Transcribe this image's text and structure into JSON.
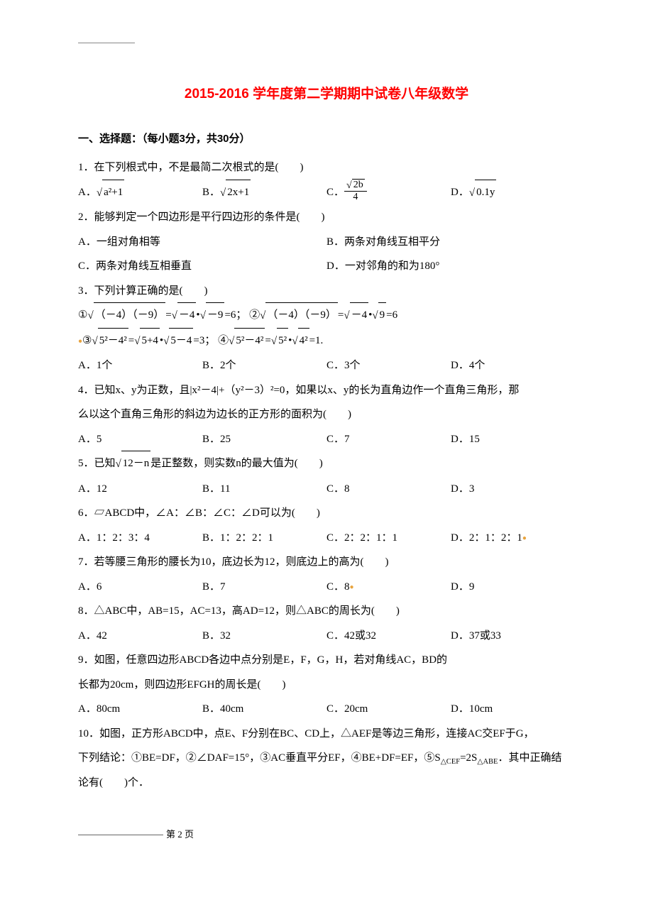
{
  "colors": {
    "title": "#ff0000",
    "text": "#000000",
    "rule": "#888888",
    "accent_dot": "#e8a33d",
    "background": "#ffffff"
  },
  "typography": {
    "title_fontsize": 19,
    "body_fontsize": 15,
    "line_height": 2.3,
    "title_family": "SimHei",
    "body_family": "SimSun"
  },
  "title": "2015-2016 学年度第二学期期中试卷八年级数学",
  "section1_header": "一、选择题：（每小题3分，共30分）",
  "q1": {
    "stem": "1．在下列根式中，不是最简二次根式的是(　　)",
    "A_prefix": "A．",
    "A_sqrt_body": "a²+1",
    "B_prefix": "B．",
    "B_sqrt_body": "2x+1",
    "C_prefix": "C．",
    "C_frac_num_sqrt": "2b",
    "C_frac_den": "4",
    "D_prefix": "D．",
    "D_sqrt_body": "0.1y"
  },
  "q2": {
    "stem": "2．能够判定一个四边形是平行四边形的条件是(　　)",
    "A": "A．一组对角相等",
    "B": "B．两条对角线互相平分",
    "C": "C．两条对角线互相垂直",
    "D": "D．一对邻角的和为180°"
  },
  "q3": {
    "stem": "3．下列计算正确的是(　　)",
    "line1_p1": "①",
    "line1_sqrt1": "（－4）（－9）",
    "line1_eq1": "=",
    "line1_sqrt2": "－4",
    "line1_dot": "•",
    "line1_sqrt3": "－9",
    "line1_res1": "=6；",
    "line1_p2": "②",
    "line1b_sqrt1": "（－4）（－9）",
    "line1b_eq": "=",
    "line1b_sqrt2": "－4",
    "line1b_dot": "•",
    "line1b_sqrt3": "9",
    "line1b_res": "=6",
    "line2_p3": "③",
    "line2_sqrt1": "5²－4²",
    "line2_eq1": "=",
    "line2_sqrt2": "5+4",
    "line2_dot1": "•",
    "line2_sqrt3": "5－4",
    "line2_res1": "=3；",
    "line2_p4": "④",
    "line2b_sqrt1": "5²－4²",
    "line2b_eq": "=",
    "line2b_sqrt2": "5²",
    "line2b_dot": "•",
    "line2b_sqrt3": "4²",
    "line2b_res": "=1.",
    "A": "A．1个",
    "B": "B．2个",
    "C": "C．3个",
    "D": "D．4个"
  },
  "q4": {
    "stem1": "4．已知x、y为正数，且|x²－4|+（y²－3）²=0，如果以x、y的长为直角边作一个直角三角形，那",
    "stem2": "么以这个直角三角形的斜边为边长的正方形的面积为(　　)",
    "A": "A．5",
    "B": "B．25",
    "C": "C．7",
    "D": "D．15"
  },
  "q5": {
    "stem_pre": "5．已知",
    "stem_sqrt": "12－n",
    "stem_post": "是正整数，则实数n的最大值为(　　)",
    "A": "A．12",
    "B": "B．11",
    "C": "C．8",
    "D": "D．3"
  },
  "q6": {
    "stem": "6．▱ABCD中，∠A：∠B：∠C：∠D可以为(　　)",
    "A": "A．1：2：3：4",
    "B": "B．1：2：2：1",
    "C": "C．2：2：1：1",
    "D": "D．2：1：2：1"
  },
  "q7": {
    "stem": "7．若等腰三角形的腰长为10，底边长为12，则底边上的高为(　　)",
    "A": "A．6",
    "B": "B．7",
    "C": "C．8",
    "D": "D．9"
  },
  "q8": {
    "stem": "8．△ABC中，AB=15，AC=13，高AD=12，则△ABC的周长为(　　)",
    "A": "A．42",
    "B": "B．32",
    "C": "C．42或32",
    "D": "D．37或33"
  },
  "q9": {
    "stem1": "9．如图，任意四边形ABCD各边中点分别是E，F，G，H，若对角线AC，BD的",
    "stem2": "长都为20cm，则四边形EFGH的周长是(　　)",
    "A": "A．80cm",
    "B": "B．40cm",
    "C": "C．20cm",
    "D": "D．10cm"
  },
  "q10": {
    "stem1": "10．如图，正方形ABCD中，点E、F分别在BC、CD上，△AEF是等边三角形，连接AC交EF于G，",
    "stem2": "下列结论：①BE=DF，②∠DAF=15°，③AC垂直平分EF，④BE+DF=EF，⑤S△CEF=2S△ABE．其中正确结",
    "stem3": "论有(　　)个．"
  },
  "footer": "第 2 页"
}
